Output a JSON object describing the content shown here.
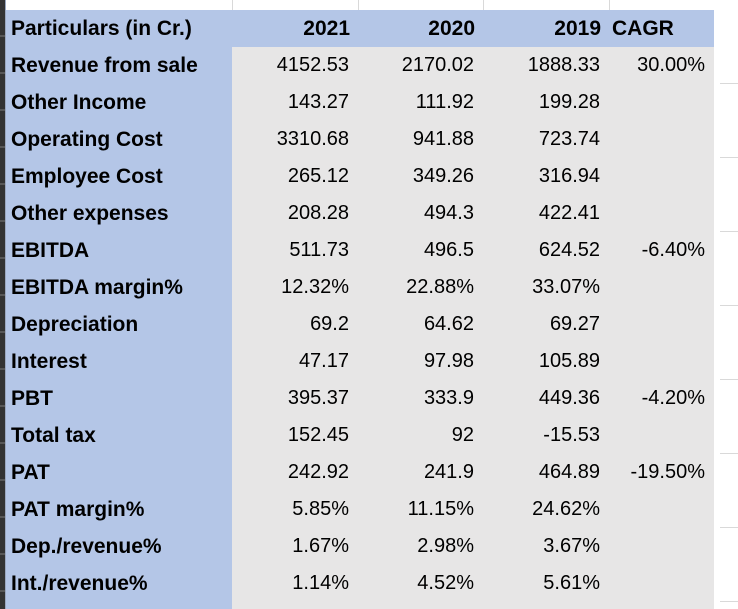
{
  "colors": {
    "header_fill": "#b4c6e7",
    "data_fill": "#e7e6e6",
    "text": "#000000",
    "gridline": "#d9d9d9",
    "row_header_strip": "#333333",
    "background": "#ffffff"
  },
  "table": {
    "header": {
      "particulars": "Particulars (in Cr.)",
      "y2021": "2021",
      "y2020": "2020",
      "y2019": "2019",
      "cagr": "CAGR"
    },
    "rows": [
      {
        "label": "Revenue from sale",
        "y2021": "4152.53",
        "y2020": "2170.02",
        "y2019": "1888.33",
        "cagr": "30.00%"
      },
      {
        "label": "Other Income",
        "y2021": "143.27",
        "y2020": "111.92",
        "y2019": "199.28",
        "cagr": ""
      },
      {
        "label": "Operating Cost",
        "y2021": "3310.68",
        "y2020": "941.88",
        "y2019": "723.74",
        "cagr": ""
      },
      {
        "label": "Employee Cost",
        "y2021": "265.12",
        "y2020": "349.26",
        "y2019": "316.94",
        "cagr": ""
      },
      {
        "label": "Other expenses",
        "y2021": "208.28",
        "y2020": "494.3",
        "y2019": "422.41",
        "cagr": ""
      },
      {
        "label": "EBITDA",
        "y2021": "511.73",
        "y2020": "496.5",
        "y2019": "624.52",
        "cagr": "-6.40%"
      },
      {
        "label": "EBITDA margin%",
        "y2021": "12.32%",
        "y2020": "22.88%",
        "y2019": "33.07%",
        "cagr": ""
      },
      {
        "label": "Depreciation",
        "y2021": "69.2",
        "y2020": "64.62",
        "y2019": "69.27",
        "cagr": ""
      },
      {
        "label": "Interest",
        "y2021": "47.17",
        "y2020": "97.98",
        "y2019": "105.89",
        "cagr": ""
      },
      {
        "label": "PBT",
        "y2021": "395.37",
        "y2020": "333.9",
        "y2019": "449.36",
        "cagr": "-4.20%"
      },
      {
        "label": "Total tax",
        "y2021": "152.45",
        "y2020": "92",
        "y2019": "-15.53",
        "cagr": ""
      },
      {
        "label": "PAT",
        "y2021": "242.92",
        "y2020": "241.9",
        "y2019": "464.89",
        "cagr": "-19.50%"
      },
      {
        "label": "PAT margin%",
        "y2021": "5.85%",
        "y2020": "11.15%",
        "y2019": "24.62%",
        "cagr": ""
      },
      {
        "label": "Dep./revenue%",
        "y2021": "1.67%",
        "y2020": "2.98%",
        "y2019": "3.67%",
        "cagr": ""
      },
      {
        "label": "Int./revenue%",
        "y2021": "1.14%",
        "y2020": "4.52%",
        "y2019": "5.61%",
        "cagr": ""
      }
    ]
  }
}
